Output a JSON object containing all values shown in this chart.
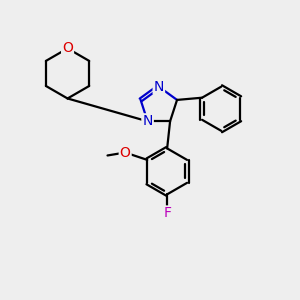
{
  "bg_color": "#eeeeee",
  "bond_color": "#000000",
  "N_color": "#0000cc",
  "O_color": "#dd0000",
  "F_color": "#bb00bb",
  "line_width": 1.6,
  "font_size_atom": 10,
  "fig_size": [
    3.0,
    3.0
  ],
  "dpi": 100,
  "xlim": [
    0.0,
    10.0
  ],
  "ylim": [
    0.5,
    9.5
  ]
}
